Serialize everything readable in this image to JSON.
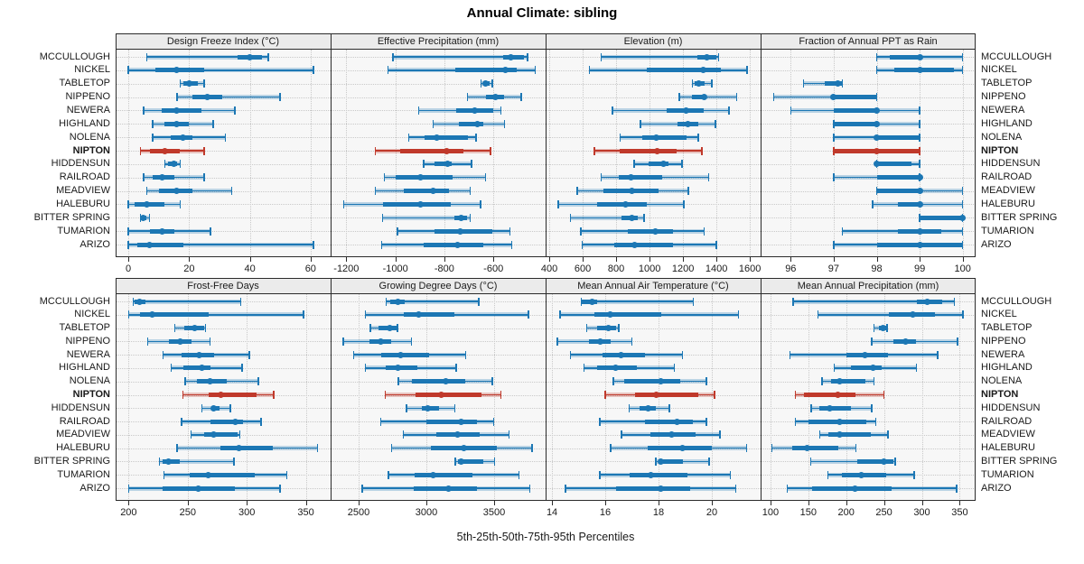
{
  "title": "Annual Climate: sibling",
  "footer": "5th-25th-50th-75th-95th Percentiles",
  "colors": {
    "series_blue": "#1c77b4",
    "highlight_red": "#c0392b",
    "strip_bg": "#ebebeb",
    "panel_bg": "#f7f7f7",
    "grid": "#c9c9c9",
    "border": "#2b2b2b"
  },
  "chart_data": {
    "type": "scatter",
    "mark": "percentile-interval (5th-25th-50th-75th-95th)",
    "title": "Annual Climate: sibling",
    "xlabel": "5th-25th-50th-75th-95th Percentiles",
    "legend": "none",
    "grid": "dotted",
    "highlight": "NIPTON",
    "categories": [
      "MCCULLOUGH",
      "NICKEL",
      "TABLETOP",
      "NIPPENO",
      "NEWERA",
      "HIGHLAND",
      "NOLENA",
      "NIPTON",
      "HIDDENSUN",
      "RAILROAD",
      "MEADVIEW",
      "HALEBURU",
      "BITTER SPRING",
      "TUMARION",
      "ARIZO"
    ],
    "panels": [
      {
        "title": "Design Freeze Index (°C)",
        "row": 0,
        "col": 0,
        "ticks": [
          0,
          20,
          40,
          60
        ],
        "xlim": [
          -4.2,
          66.6
        ],
        "values": [
          [
            6,
            36,
            40,
            44,
            46
          ],
          [
            0,
            9,
            16,
            25,
            61
          ],
          [
            17,
            18,
            20,
            23,
            25
          ],
          [
            16,
            21,
            26,
            31,
            50
          ],
          [
            5,
            11,
            16,
            24,
            35
          ],
          [
            8,
            12,
            16,
            20,
            28
          ],
          [
            8,
            14,
            18,
            21,
            32
          ],
          [
            4,
            7,
            12,
            17,
            25
          ],
          [
            12,
            13,
            15,
            16,
            17
          ],
          [
            5,
            8,
            11,
            15,
            25
          ],
          [
            6,
            10,
            16,
            21,
            34
          ],
          [
            0,
            2,
            6,
            12,
            17
          ],
          [
            4,
            4.5,
            5,
            6,
            7
          ],
          [
            0,
            7,
            11,
            15,
            27
          ],
          [
            0,
            3,
            7,
            18,
            61
          ]
        ]
      },
      {
        "title": "Effective Precipitation (mm)",
        "row": 0,
        "col": 1,
        "ticks": [
          -1200,
          -1000,
          -800,
          -600
        ],
        "xlim": [
          -1264,
          -387
        ],
        "values": [
          [
            -1010,
            -560,
            -528,
            -475,
            -460
          ],
          [
            -1030,
            -755,
            -550,
            -505,
            -430
          ],
          [
            -650,
            -643,
            -632,
            -617,
            -605
          ],
          [
            -705,
            -630,
            -592,
            -555,
            -486
          ],
          [
            -905,
            -750,
            -678,
            -602,
            -570
          ],
          [
            -846,
            -742,
            -664,
            -642,
            -555
          ],
          [
            -945,
            -880,
            -830,
            -705,
            -670
          ],
          [
            -1082,
            -982,
            -792,
            -721,
            -611
          ],
          [
            -884,
            -839,
            -786,
            -770,
            -689
          ],
          [
            -1045,
            -999,
            -899,
            -765,
            -632
          ],
          [
            -1082,
            -967,
            -846,
            -780,
            -695
          ],
          [
            -1211,
            -1049,
            -899,
            -774,
            -652
          ],
          [
            -1052,
            -760,
            -730,
            -708,
            -695
          ],
          [
            -992,
            -842,
            -736,
            -605,
            -532
          ],
          [
            -1055,
            -886,
            -745,
            -642,
            -526
          ]
        ]
      },
      {
        "title": "Elevation (m)",
        "row": 0,
        "col": 2,
        "ticks": [
          400,
          600,
          800,
          1000,
          1200,
          1400,
          1600
        ],
        "xlim": [
          378,
          1664
        ],
        "values": [
          [
            710,
            1287,
            1345,
            1399,
            1413
          ],
          [
            639,
            985,
            1323,
            1426,
            1582
          ],
          [
            1255,
            1268,
            1296,
            1327,
            1372
          ],
          [
            1178,
            1255,
            1327,
            1336,
            1521
          ],
          [
            778,
            1102,
            1219,
            1323,
            1475
          ],
          [
            945,
            1165,
            1228,
            1291,
            1395
          ],
          [
            823,
            958,
            1039,
            1219,
            1291
          ],
          [
            670,
            823,
            1044,
            1160,
            1312
          ],
          [
            908,
            994,
            1084,
            1111,
            1195
          ],
          [
            711,
            814,
            886,
            1075,
            1354
          ],
          [
            567,
            724,
            895,
            1052,
            1233
          ],
          [
            454,
            688,
            855,
            985,
            1204
          ],
          [
            526,
            832,
            895,
            931,
            967
          ],
          [
            589,
            868,
            1035,
            1138,
            1327
          ],
          [
            598,
            787,
            909,
            1138,
            1399
          ]
        ]
      },
      {
        "title": "Fraction of Annual PPT as Rain",
        "row": 0,
        "col": 3,
        "ticks": [
          96,
          97,
          98,
          99,
          100
        ],
        "xlim": [
          95.3,
          100.3
        ],
        "values": [
          [
            98,
            98.3,
            99,
            99,
            100
          ],
          [
            98,
            98.4,
            99,
            99.8,
            100
          ],
          [
            96.3,
            96.8,
            97.1,
            97.2,
            97.2
          ],
          [
            95.6,
            97,
            97,
            98,
            98
          ],
          [
            96,
            97,
            98,
            98,
            99
          ],
          [
            97,
            97,
            98,
            98,
            99
          ],
          [
            97,
            98,
            98,
            99,
            99
          ],
          [
            97,
            97,
            98,
            99,
            99
          ],
          [
            98,
            98,
            98,
            98.8,
            99
          ],
          [
            97,
            98,
            99,
            99,
            99
          ],
          [
            98,
            98,
            99,
            99,
            100
          ],
          [
            97.9,
            98.5,
            99,
            99,
            100
          ],
          [
            99,
            99,
            100,
            100,
            100
          ],
          [
            97.2,
            98.5,
            99,
            99.5,
            100
          ],
          [
            97,
            98,
            99,
            100,
            100
          ]
        ]
      },
      {
        "title": "Frost-Free Days",
        "row": 1,
        "col": 0,
        "ticks": [
          200,
          250,
          300,
          350
        ],
        "xlim": [
          189,
          371
        ],
        "values": [
          [
            204,
            205,
            209,
            214,
            295
          ],
          [
            200,
            210,
            220,
            268,
            348
          ],
          [
            239,
            247,
            256,
            264,
            265
          ],
          [
            216,
            234,
            244,
            253,
            269
          ],
          [
            229,
            245,
            260,
            272,
            302
          ],
          [
            236,
            246,
            262,
            269,
            296
          ],
          [
            248,
            258,
            269,
            283,
            310
          ],
          [
            246,
            268,
            278,
            308,
            323
          ],
          [
            262,
            270,
            272,
            277,
            286
          ],
          [
            245,
            269,
            290,
            297,
            312
          ],
          [
            253,
            264,
            272,
            292,
            294
          ],
          [
            241,
            278,
            293,
            322,
            360
          ],
          [
            226,
            229,
            234,
            243,
            289
          ],
          [
            230,
            252,
            267,
            307,
            334
          ],
          [
            200,
            229,
            259,
            290,
            328
          ]
        ]
      },
      {
        "title": "Growing Degree Days (°C)",
        "row": 1,
        "col": 1,
        "ticks": [
          2500,
          3000,
          3500
        ],
        "xlim": [
          2293,
          3880
        ],
        "values": [
          [
            2704,
            2731,
            2793,
            2842,
            3387
          ],
          [
            2549,
            2831,
            2942,
            3209,
            3753
          ],
          [
            2587,
            2649,
            2731,
            2780,
            2787
          ],
          [
            2387,
            2580,
            2660,
            2742,
            2891
          ],
          [
            2464,
            2669,
            2813,
            3020,
            3291
          ],
          [
            2549,
            2698,
            2787,
            2936,
            3220
          ],
          [
            2793,
            2891,
            3142,
            3287,
            3487
          ],
          [
            2698,
            2920,
            3109,
            3409,
            3549
          ],
          [
            2853,
            2964,
            3009,
            3093,
            3209
          ],
          [
            2664,
            2998,
            3258,
            3376,
            3498
          ],
          [
            2831,
            3076,
            3231,
            3391,
            3609
          ],
          [
            2742,
            3036,
            3276,
            3520,
            3780
          ],
          [
            3213,
            3231,
            3258,
            3420,
            3504
          ],
          [
            2720,
            2916,
            3053,
            3342,
            3682
          ],
          [
            2527,
            2904,
            3164,
            3376,
            3764
          ]
        ]
      },
      {
        "title": "Mean Annual Air Temperature (°C)",
        "row": 1,
        "col": 2,
        "ticks": [
          14,
          16,
          18,
          20
        ],
        "xlim": [
          13.76,
          21.83
        ],
        "values": [
          [
            15.1,
            15.1,
            15.5,
            15.7,
            19.3
          ],
          [
            14.3,
            15.6,
            16.2,
            18.1,
            21.0
          ],
          [
            15.3,
            15.7,
            16.1,
            16.4,
            16.5
          ],
          [
            14.2,
            15.4,
            15.8,
            16.2,
            17.0
          ],
          [
            14.7,
            15.9,
            16.6,
            17.5,
            18.9
          ],
          [
            15.2,
            15.7,
            16.4,
            17.2,
            18.6
          ],
          [
            16.3,
            16.7,
            18.1,
            18.8,
            19.8
          ],
          [
            16.0,
            17.1,
            17.9,
            19.5,
            20.1
          ],
          [
            16.9,
            17.3,
            17.6,
            17.9,
            18.4
          ],
          [
            15.8,
            17.5,
            18.7,
            19.3,
            19.8
          ],
          [
            16.6,
            17.7,
            18.5,
            19.4,
            20.3
          ],
          [
            16.2,
            17.6,
            18.9,
            20.0,
            21.3
          ],
          [
            17.9,
            18.0,
            18.1,
            18.9,
            19.9
          ],
          [
            15.8,
            16.9,
            17.7,
            19.1,
            20.7
          ],
          [
            14.5,
            16.4,
            18.1,
            19.2,
            20.9
          ]
        ]
      },
      {
        "title": "Mean Annual Precipitation (mm)",
        "row": 1,
        "col": 3,
        "ticks": [
          100,
          150,
          200,
          250,
          300,
          350
        ],
        "xlim": [
          87,
          371
        ],
        "values": [
          [
            130,
            294,
            307,
            327,
            343
          ],
          [
            163,
            256,
            288,
            317,
            354
          ],
          [
            237,
            243,
            249,
            254,
            254
          ],
          [
            234,
            262,
            278,
            292,
            347
          ],
          [
            126,
            200,
            225,
            255,
            321
          ],
          [
            184,
            206,
            235,
            247,
            293
          ],
          [
            168,
            180,
            191,
            225,
            237
          ],
          [
            133,
            144,
            189,
            212,
            250
          ],
          [
            154,
            164,
            178,
            206,
            234
          ],
          [
            133,
            150,
            191,
            227,
            239
          ],
          [
            165,
            176,
            192,
            232,
            255
          ],
          [
            102,
            129,
            149,
            190,
            213
          ],
          [
            153,
            215,
            250,
            262,
            265
          ],
          [
            176,
            194,
            220,
            253,
            290
          ],
          [
            122,
            155,
            212,
            260,
            346
          ]
        ]
      }
    ]
  }
}
